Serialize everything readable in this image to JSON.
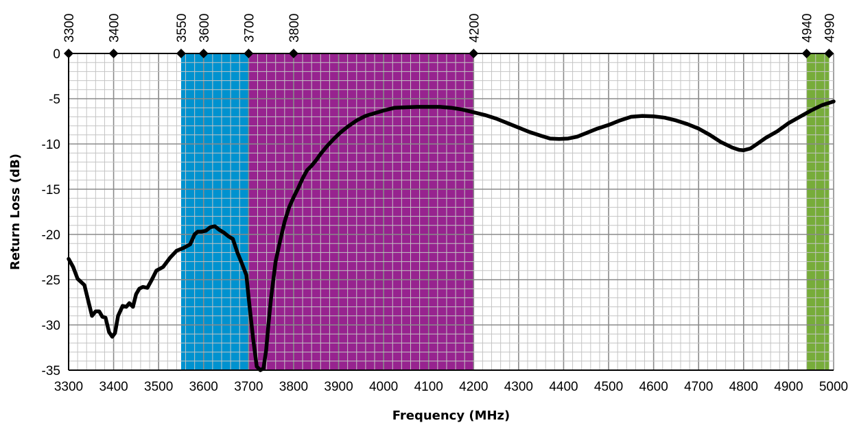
{
  "chart_data": {
    "type": "line",
    "title": "",
    "xlabel": "Frequency (MHz)",
    "ylabel": "Return Loss (dB)",
    "xlim": [
      3300,
      5000
    ],
    "ylim": [
      -35,
      0
    ],
    "x_ticks": [
      3300,
      3400,
      3500,
      3600,
      3700,
      3800,
      3900,
      4000,
      4100,
      4200,
      4300,
      4400,
      4500,
      4600,
      4700,
      4800,
      4900,
      5000
    ],
    "y_ticks": [
      0,
      -5,
      -10,
      -15,
      -20,
      -25,
      -30,
      -35
    ],
    "x_tick_labels": [
      "3300",
      "3400",
      "3500",
      "3600",
      "3700",
      "3800",
      "3900",
      "4000",
      "4100",
      "4200",
      "4300",
      "4400",
      "4500",
      "4600",
      "4700",
      "4800",
      "4900",
      "5000"
    ],
    "y_tick_labels": [
      "0",
      "-5",
      "-10",
      "-15",
      "-20",
      "-25",
      "-30",
      "-35"
    ],
    "grid": true,
    "band_markers": {
      "values": [
        3300,
        3400,
        3550,
        3600,
        3700,
        3800,
        4200,
        4940,
        4990
      ],
      "labels": [
        "3300",
        "3400",
        "3550",
        "3600",
        "3700",
        "3800",
        "4200",
        "4940",
        "4990"
      ]
    },
    "bands": [
      {
        "x_start": 3550,
        "x_end": 3700,
        "color": "#0092CF"
      },
      {
        "x_start": 3700,
        "x_end": 4200,
        "color": "#97238F"
      },
      {
        "x_start": 4940,
        "x_end": 4990,
        "color": "#77AC3A"
      }
    ],
    "series": [
      {
        "line_color": "#000000",
        "x": [
          3300,
          3310,
          3320,
          3335,
          3345,
          3352,
          3360,
          3368,
          3375,
          3382,
          3390,
          3397,
          3403,
          3410,
          3420,
          3428,
          3435,
          3443,
          3450,
          3457,
          3465,
          3475,
          3485,
          3495,
          3510,
          3525,
          3540,
          3555,
          3570,
          3580,
          3587,
          3595,
          3605,
          3615,
          3625,
          3635,
          3645,
          3655,
          3665,
          3675,
          3685,
          3695,
          3700,
          3710,
          3718,
          3726,
          3733,
          3739,
          3744,
          3750,
          3760,
          3770,
          3780,
          3790,
          3800,
          3810,
          3820,
          3830,
          3840,
          3850,
          3860,
          3875,
          3890,
          3905,
          3920,
          3940,
          3960,
          3980,
          4000,
          4025,
          4050,
          4075,
          4100,
          4125,
          4150,
          4175,
          4200,
          4225,
          4250,
          4275,
          4300,
          4325,
          4350,
          4370,
          4390,
          4410,
          4430,
          4450,
          4475,
          4500,
          4525,
          4550,
          4575,
          4600,
          4625,
          4650,
          4675,
          4700,
          4725,
          4750,
          4775,
          4790,
          4800,
          4815,
          4830,
          4850,
          4875,
          4900,
          4925,
          4950,
          4975,
          5000
        ],
        "y": [
          -22.7,
          -23.6,
          -24.9,
          -25.6,
          -27.6,
          -29.0,
          -28.5,
          -28.5,
          -29.1,
          -29.2,
          -30.8,
          -31.3,
          -30.9,
          -29.0,
          -27.9,
          -28.0,
          -27.6,
          -28.0,
          -26.6,
          -26.0,
          -25.8,
          -25.9,
          -25.0,
          -24.0,
          -23.6,
          -22.6,
          -21.8,
          -21.5,
          -21.1,
          -20.0,
          -19.7,
          -19.7,
          -19.6,
          -19.2,
          -19.1,
          -19.5,
          -19.8,
          -20.2,
          -20.5,
          -22.0,
          -23.2,
          -24.5,
          -27.0,
          -31.5,
          -34.6,
          -35.0,
          -34.8,
          -32.8,
          -30.0,
          -27.0,
          -23.0,
          -20.7,
          -18.6,
          -17.0,
          -15.9,
          -14.9,
          -13.8,
          -12.9,
          -12.4,
          -11.8,
          -11.1,
          -10.2,
          -9.4,
          -8.7,
          -8.1,
          -7.4,
          -6.9,
          -6.6,
          -6.3,
          -6.0,
          -5.95,
          -5.9,
          -5.9,
          -5.9,
          -6.0,
          -6.2,
          -6.5,
          -6.8,
          -7.2,
          -7.7,
          -8.2,
          -8.7,
          -9.1,
          -9.4,
          -9.45,
          -9.4,
          -9.2,
          -8.8,
          -8.3,
          -7.9,
          -7.4,
          -7.0,
          -6.9,
          -6.95,
          -7.1,
          -7.4,
          -7.8,
          -8.3,
          -9.0,
          -9.8,
          -10.4,
          -10.65,
          -10.7,
          -10.5,
          -10.0,
          -9.3,
          -8.6,
          -7.7,
          -7.0,
          -6.3,
          -5.7,
          -5.3
        ]
      }
    ]
  }
}
